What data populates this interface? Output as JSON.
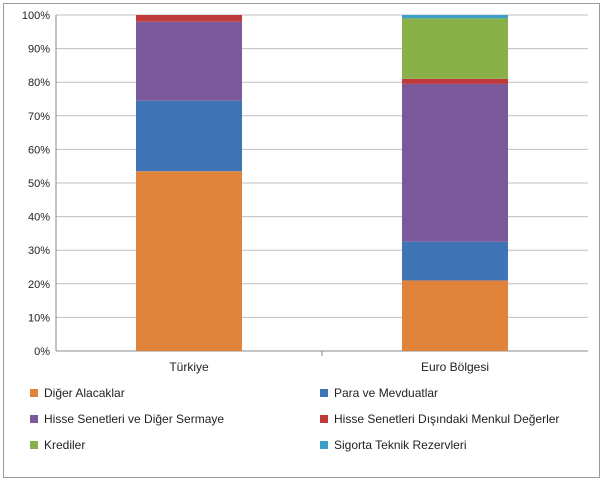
{
  "chart_data": {
    "type": "bar",
    "stacked": true,
    "percent": true,
    "categories": [
      "Türkiye",
      "Euro Bölgesi"
    ],
    "series": [
      {
        "name": "Diğer Alacaklar",
        "color": "#e0843c",
        "values": [
          53.5,
          21
        ]
      },
      {
        "name": "Para ve Mevduatlar",
        "color": "#3f75b7",
        "values": [
          21,
          11.5
        ]
      },
      {
        "name": "Hisse Senetleri ve Diğer Sermaye",
        "color": "#7a5a9a",
        "values": [
          23.5,
          47
        ]
      },
      {
        "name": "Hisse Senetleri Dışındaki Menkul Değerler",
        "color": "#c0393b",
        "values": [
          2,
          1.5
        ]
      },
      {
        "name": "Krediler",
        "color": "#8ab04a",
        "values": [
          0,
          18
        ]
      },
      {
        "name": "Sigorta Teknik Rezervleri",
        "color": "#3aa0c8",
        "values": [
          0,
          1
        ]
      }
    ],
    "y_ticks": [
      "0%",
      "10%",
      "20%",
      "30%",
      "40%",
      "50%",
      "60%",
      "70%",
      "80%",
      "90%",
      "100%"
    ],
    "ylim": [
      0,
      100
    ],
    "grid": true,
    "legend_position": "bottom"
  }
}
